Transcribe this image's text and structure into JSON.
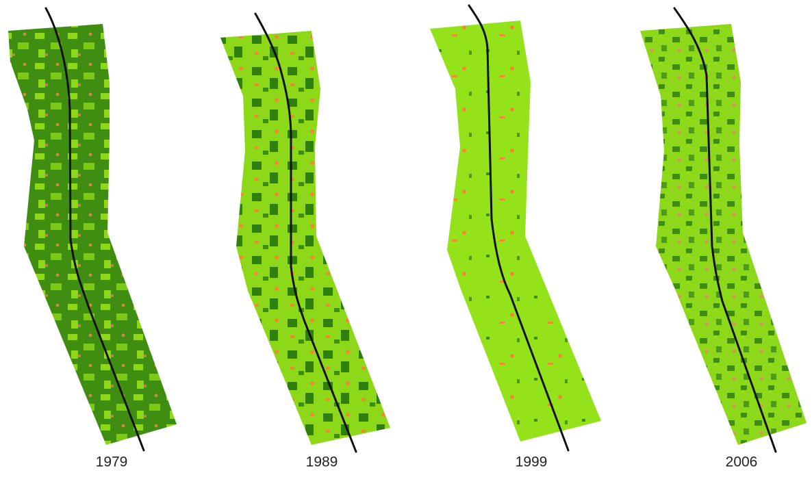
{
  "panels": [
    {
      "year": "1979"
    },
    {
      "year": "1989"
    },
    {
      "year": "1999"
    },
    {
      "year": "2006"
    }
  ]
}
